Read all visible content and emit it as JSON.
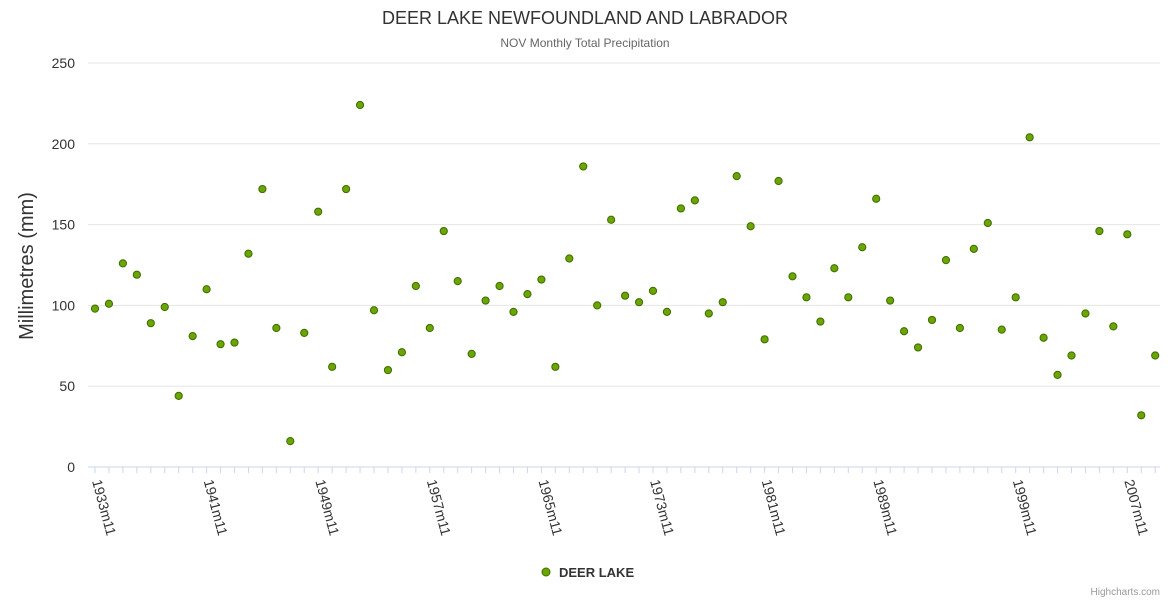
{
  "colors": {
    "marker_fill": "#6aa500",
    "marker_stroke": "#3f6b00",
    "grid": "#e6e6e6",
    "axis": "#ccd6eb"
  },
  "chart_data": {
    "type": "scatter",
    "title": "DEER LAKE NEWFOUNDLAND AND LABRADOR",
    "subtitle": "NOV Monthly Total Precipitation",
    "ylabel": "Millimetres (mm)",
    "ylim": [
      0,
      250
    ],
    "yticks": [
      "0",
      "50",
      "100",
      "150",
      "200",
      "250"
    ],
    "x_first_year": 1933,
    "x_tick_labels": [
      "1933m11",
      "1941m11",
      "1949m11",
      "1957m11",
      "1965m11",
      "1973m11",
      "1981m11",
      "1989m11",
      "1999m11",
      "2007m11"
    ],
    "legend": "top-right",
    "legend_position": "bottom-center",
    "grid": true,
    "series": [
      {
        "name": "DEER LAKE",
        "values": [
          98,
          101,
          126,
          119,
          89,
          99,
          44,
          81,
          110,
          76,
          77,
          132,
          172,
          86,
          16,
          83,
          158,
          62,
          172,
          224,
          97,
          60,
          71,
          112,
          86,
          146,
          115,
          70,
          103,
          112,
          96,
          107,
          116,
          62,
          129,
          186,
          100,
          153,
          106,
          102,
          109,
          96,
          160,
          165,
          95,
          102,
          180,
          149,
          79,
          177,
          118,
          105,
          90,
          123,
          105,
          136,
          166,
          103,
          84,
          74,
          91,
          128,
          86,
          135,
          151,
          85,
          105,
          204,
          80,
          57,
          69,
          95,
          146,
          87,
          144,
          32,
          69
        ]
      }
    ]
  },
  "credit": "Highcharts.com"
}
